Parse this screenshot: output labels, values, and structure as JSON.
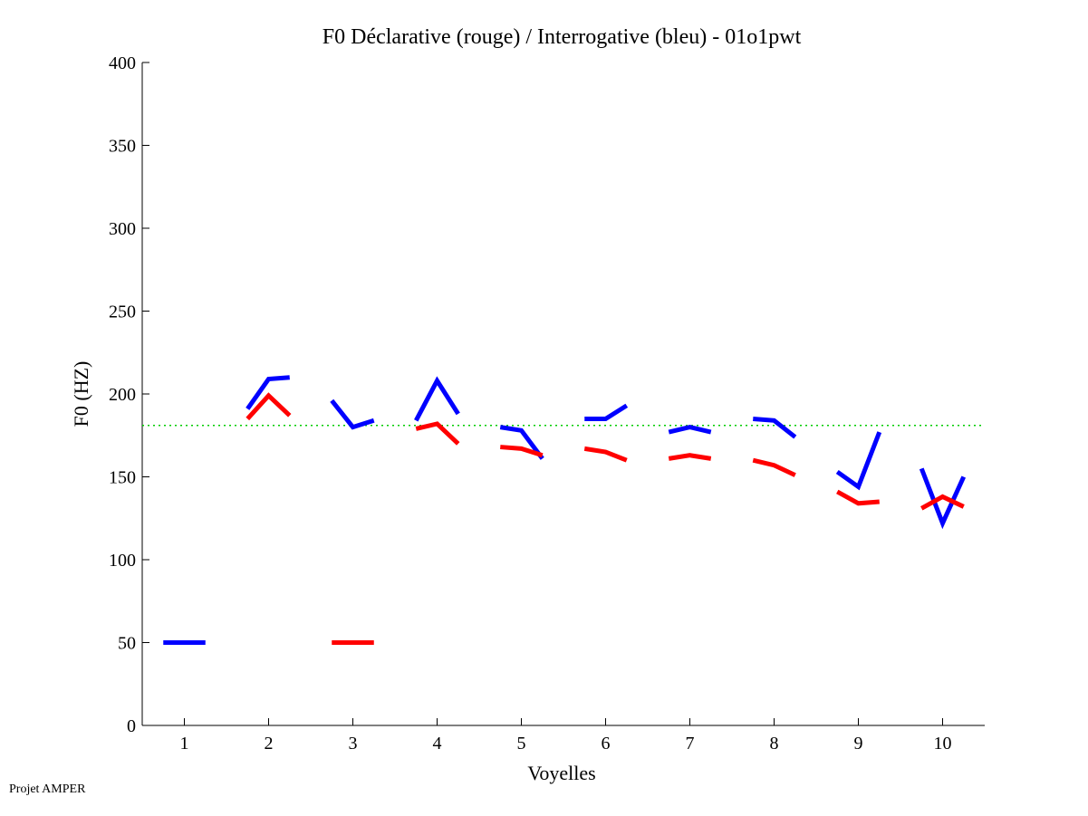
{
  "chart_data": {
    "type": "line",
    "title": "F0 Déclarative (rouge) / Interrogative (bleu) - 01o1pwt",
    "xlabel": "Voyelles",
    "ylabel": "F0 (HZ)",
    "xlim": [
      0.5,
      10.5
    ],
    "ylim": [
      0,
      400
    ],
    "xticks": [
      1,
      2,
      3,
      4,
      5,
      6,
      7,
      8,
      9,
      10
    ],
    "yticks": [
      0,
      50,
      100,
      150,
      200,
      250,
      300,
      350,
      400
    ],
    "grid": false,
    "reference_line": {
      "y": 181,
      "color": "#00cc00",
      "style": "dotted"
    },
    "series": [
      {
        "name": "Interrogative (bleu)",
        "color": "#0000ff",
        "segments": [
          {
            "vowel": 1,
            "values": [
              50,
              50,
              50
            ]
          },
          {
            "vowel": 2,
            "values": [
              191,
              209,
              210
            ]
          },
          {
            "vowel": 3,
            "values": [
              196,
              180,
              184
            ]
          },
          {
            "vowel": 4,
            "values": [
              184,
              208,
              188
            ]
          },
          {
            "vowel": 5,
            "values": [
              180,
              178,
              161
            ]
          },
          {
            "vowel": 6,
            "values": [
              185,
              185,
              193
            ]
          },
          {
            "vowel": 7,
            "values": [
              177,
              180,
              177
            ]
          },
          {
            "vowel": 8,
            "values": [
              185,
              184,
              174
            ]
          },
          {
            "vowel": 9,
            "values": [
              153,
              144,
              177
            ]
          },
          {
            "vowel": 10,
            "values": [
              155,
              122,
              150
            ]
          }
        ]
      },
      {
        "name": "Déclarative (rouge)",
        "color": "#ff0000",
        "segments": [
          {
            "vowel": 2,
            "values": [
              185,
              199,
              187
            ]
          },
          {
            "vowel": 3,
            "values": [
              50,
              50,
              50
            ]
          },
          {
            "vowel": 4,
            "values": [
              179,
              182,
              170
            ]
          },
          {
            "vowel": 5,
            "values": [
              168,
              167,
              163
            ]
          },
          {
            "vowel": 6,
            "values": [
              167,
              165,
              160
            ]
          },
          {
            "vowel": 7,
            "values": [
              161,
              163,
              161
            ]
          },
          {
            "vowel": 8,
            "values": [
              160,
              157,
              151
            ]
          },
          {
            "vowel": 9,
            "values": [
              141,
              134,
              135
            ]
          },
          {
            "vowel": 10,
            "values": [
              131,
              138,
              132
            ]
          }
        ]
      }
    ]
  },
  "footer": "Projet AMPER"
}
